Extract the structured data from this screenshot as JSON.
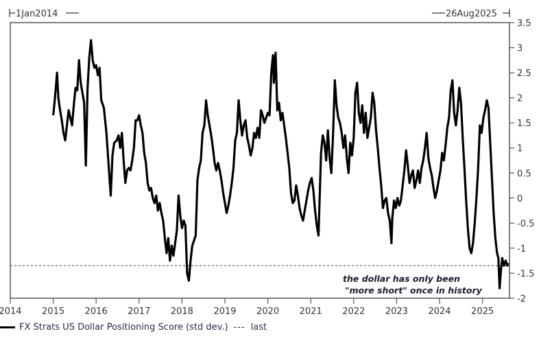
{
  "header": {
    "start_date": "1Jan2014",
    "end_date": "26Aug2025"
  },
  "legend": {
    "series_label": "FX Strats US Dollar Positioning Score (std dev.)",
    "dash_symbol": "---",
    "last_label": "last"
  },
  "annotation": {
    "line1": "the dollar has only been",
    "line2": "\"more short\"  once in history"
  },
  "chart_data": {
    "type": "line",
    "title": "",
    "xlabel": "",
    "ylabel": "",
    "x_ticks": [
      "2014",
      "2015",
      "2016",
      "2017",
      "2018",
      "2019",
      "2020",
      "2021",
      "2022",
      "2023",
      "2024",
      "2025"
    ],
    "y_ticks": [
      3.5,
      3,
      2.5,
      2,
      1.5,
      1,
      0.5,
      0,
      -0.5,
      -1,
      -1.5,
      -2
    ],
    "xlim": [
      2014.0,
      2025.65
    ],
    "ylim": [
      -2,
      3.5
    ],
    "y_axis_position": "right",
    "grid": false,
    "legend_position": "bottom-left",
    "reference_line": {
      "name": "last",
      "value": -1.35,
      "style": "dotted"
    },
    "series": [
      {
        "name": "FX Strats US Dollar Positioning Score (std dev.)",
        "color": "#000000",
        "points": [
          [
            2015.0,
            1.65
          ],
          [
            2015.03,
            1.9
          ],
          [
            2015.06,
            2.2
          ],
          [
            2015.09,
            2.5
          ],
          [
            2015.12,
            2.0
          ],
          [
            2015.16,
            1.75
          ],
          [
            2015.2,
            1.55
          ],
          [
            2015.24,
            1.3
          ],
          [
            2015.28,
            1.15
          ],
          [
            2015.32,
            1.45
          ],
          [
            2015.36,
            1.75
          ],
          [
            2015.4,
            1.6
          ],
          [
            2015.44,
            1.45
          ],
          [
            2015.48,
            1.85
          ],
          [
            2015.52,
            2.2
          ],
          [
            2015.56,
            2.15
          ],
          [
            2015.6,
            2.75
          ],
          [
            2015.64,
            2.3
          ],
          [
            2015.68,
            2.1
          ],
          [
            2015.72,
            1.9
          ],
          [
            2015.76,
            0.65
          ],
          [
            2015.8,
            2.2
          ],
          [
            2015.84,
            2.8
          ],
          [
            2015.88,
            3.15
          ],
          [
            2015.92,
            2.75
          ],
          [
            2015.96,
            2.6
          ],
          [
            2016.0,
            2.65
          ],
          [
            2016.04,
            2.45
          ],
          [
            2016.08,
            2.6
          ],
          [
            2016.12,
            1.95
          ],
          [
            2016.18,
            1.8
          ],
          [
            2016.24,
            1.3
          ],
          [
            2016.28,
            0.8
          ],
          [
            2016.32,
            0.3
          ],
          [
            2016.34,
            0.05
          ],
          [
            2016.38,
            0.85
          ],
          [
            2016.42,
            1.1
          ],
          [
            2016.48,
            1.15
          ],
          [
            2016.52,
            1.25
          ],
          [
            2016.56,
            1.0
          ],
          [
            2016.6,
            1.3
          ],
          [
            2016.64,
            0.75
          ],
          [
            2016.68,
            0.3
          ],
          [
            2016.72,
            0.55
          ],
          [
            2016.76,
            0.6
          ],
          [
            2016.8,
            0.55
          ],
          [
            2016.84,
            0.75
          ],
          [
            2016.88,
            1.0
          ],
          [
            2016.92,
            1.55
          ],
          [
            2016.96,
            1.55
          ],
          [
            2017.0,
            1.65
          ],
          [
            2017.04,
            1.45
          ],
          [
            2017.08,
            1.3
          ],
          [
            2017.12,
            0.9
          ],
          [
            2017.16,
            0.7
          ],
          [
            2017.2,
            0.3
          ],
          [
            2017.24,
            0.15
          ],
          [
            2017.28,
            0.2
          ],
          [
            2017.32,
            0.0
          ],
          [
            2017.36,
            -0.1
          ],
          [
            2017.4,
            0.05
          ],
          [
            2017.44,
            -0.25
          ],
          [
            2017.48,
            -0.1
          ],
          [
            2017.52,
            -0.3
          ],
          [
            2017.56,
            -0.45
          ],
          [
            2017.6,
            -0.8
          ],
          [
            2017.64,
            -1.1
          ],
          [
            2017.68,
            -0.8
          ],
          [
            2017.72,
            -1.25
          ],
          [
            2017.76,
            -0.95
          ],
          [
            2017.8,
            -1.15
          ],
          [
            2017.84,
            -0.9
          ],
          [
            2017.88,
            -0.65
          ],
          [
            2017.92,
            0.05
          ],
          [
            2017.96,
            -0.35
          ],
          [
            2018.0,
            -0.6
          ],
          [
            2018.04,
            -0.45
          ],
          [
            2018.08,
            -0.55
          ],
          [
            2018.12,
            -1.5
          ],
          [
            2018.16,
            -1.65
          ],
          [
            2018.2,
            -1.25
          ],
          [
            2018.24,
            -0.95
          ],
          [
            2018.28,
            -0.85
          ],
          [
            2018.32,
            -0.75
          ],
          [
            2018.36,
            0.35
          ],
          [
            2018.4,
            0.6
          ],
          [
            2018.44,
            0.75
          ],
          [
            2018.48,
            1.3
          ],
          [
            2018.52,
            1.45
          ],
          [
            2018.56,
            1.95
          ],
          [
            2018.6,
            1.65
          ],
          [
            2018.64,
            1.45
          ],
          [
            2018.68,
            1.25
          ],
          [
            2018.72,
            1.0
          ],
          [
            2018.76,
            0.7
          ],
          [
            2018.8,
            0.55
          ],
          [
            2018.84,
            0.7
          ],
          [
            2018.88,
            0.55
          ],
          [
            2018.92,
            0.35
          ],
          [
            2018.96,
            0.1
          ],
          [
            2019.0,
            -0.1
          ],
          [
            2019.04,
            -0.3
          ],
          [
            2019.08,
            -0.15
          ],
          [
            2019.12,
            0.05
          ],
          [
            2019.16,
            0.3
          ],
          [
            2019.2,
            0.6
          ],
          [
            2019.24,
            1.15
          ],
          [
            2019.28,
            1.3
          ],
          [
            2019.32,
            1.95
          ],
          [
            2019.36,
            1.55
          ],
          [
            2019.4,
            1.25
          ],
          [
            2019.44,
            1.45
          ],
          [
            2019.48,
            1.55
          ],
          [
            2019.52,
            1.2
          ],
          [
            2019.56,
            1.05
          ],
          [
            2019.6,
            0.85
          ],
          [
            2019.64,
            1.0
          ],
          [
            2019.68,
            1.3
          ],
          [
            2019.72,
            1.2
          ],
          [
            2019.76,
            1.4
          ],
          [
            2019.8,
            1.2
          ],
          [
            2019.84,
            1.75
          ],
          [
            2019.88,
            1.65
          ],
          [
            2019.92,
            1.5
          ],
          [
            2019.96,
            1.6
          ],
          [
            2020.0,
            1.7
          ],
          [
            2020.04,
            1.65
          ],
          [
            2020.08,
            2.5
          ],
          [
            2020.12,
            2.85
          ],
          [
            2020.14,
            2.3
          ],
          [
            2020.18,
            2.9
          ],
          [
            2020.22,
            1.75
          ],
          [
            2020.26,
            1.9
          ],
          [
            2020.3,
            1.55
          ],
          [
            2020.34,
            1.7
          ],
          [
            2020.38,
            1.45
          ],
          [
            2020.42,
            1.2
          ],
          [
            2020.46,
            0.9
          ],
          [
            2020.5,
            0.6
          ],
          [
            2020.54,
            0.1
          ],
          [
            2020.58,
            -0.1
          ],
          [
            2020.62,
            -0.05
          ],
          [
            2020.66,
            0.25
          ],
          [
            2020.7,
            0.05
          ],
          [
            2020.74,
            -0.2
          ],
          [
            2020.78,
            -0.35
          ],
          [
            2020.82,
            -0.45
          ],
          [
            2020.86,
            -0.25
          ],
          [
            2020.9,
            -0.05
          ],
          [
            2020.94,
            0.15
          ],
          [
            2020.98,
            0.3
          ],
          [
            2021.02,
            0.4
          ],
          [
            2021.06,
            0.15
          ],
          [
            2021.1,
            -0.25
          ],
          [
            2021.14,
            -0.55
          ],
          [
            2021.18,
            -0.75
          ],
          [
            2021.2,
            -0.2
          ],
          [
            2021.24,
            0.9
          ],
          [
            2021.28,
            1.25
          ],
          [
            2021.32,
            1.1
          ],
          [
            2021.36,
            0.75
          ],
          [
            2021.4,
            1.35
          ],
          [
            2021.44,
            0.8
          ],
          [
            2021.48,
            0.5
          ],
          [
            2021.52,
            1.3
          ],
          [
            2021.56,
            2.35
          ],
          [
            2021.6,
            1.85
          ],
          [
            2021.64,
            1.6
          ],
          [
            2021.68,
            1.5
          ],
          [
            2021.72,
            1.3
          ],
          [
            2021.76,
            1.0
          ],
          [
            2021.8,
            1.25
          ],
          [
            2021.84,
            0.8
          ],
          [
            2021.88,
            0.5
          ],
          [
            2021.92,
            1.1
          ],
          [
            2021.96,
            0.85
          ],
          [
            2022.0,
            1.2
          ],
          [
            2022.04,
            2.1
          ],
          [
            2022.08,
            2.3
          ],
          [
            2022.12,
            1.7
          ],
          [
            2022.16,
            1.5
          ],
          [
            2022.2,
            1.85
          ],
          [
            2022.24,
            1.3
          ],
          [
            2022.28,
            1.7
          ],
          [
            2022.32,
            1.2
          ],
          [
            2022.36,
            1.4
          ],
          [
            2022.4,
            1.6
          ],
          [
            2022.44,
            2.1
          ],
          [
            2022.48,
            1.9
          ],
          [
            2022.52,
            1.35
          ],
          [
            2022.56,
            1.0
          ],
          [
            2022.6,
            0.6
          ],
          [
            2022.64,
            0.25
          ],
          [
            2022.68,
            -0.2
          ],
          [
            2022.72,
            -0.05
          ],
          [
            2022.76,
            0.0
          ],
          [
            2022.8,
            -0.3
          ],
          [
            2022.84,
            -0.45
          ],
          [
            2022.88,
            -0.9
          ],
          [
            2022.9,
            -0.4
          ],
          [
            2022.94,
            -0.05
          ],
          [
            2022.98,
            -0.2
          ],
          [
            2023.02,
            0.0
          ],
          [
            2023.06,
            -0.15
          ],
          [
            2023.1,
            -0.05
          ],
          [
            2023.14,
            0.25
          ],
          [
            2023.18,
            0.55
          ],
          [
            2023.22,
            0.95
          ],
          [
            2023.26,
            0.65
          ],
          [
            2023.3,
            0.3
          ],
          [
            2023.34,
            0.45
          ],
          [
            2023.38,
            0.55
          ],
          [
            2023.42,
            0.2
          ],
          [
            2023.46,
            0.35
          ],
          [
            2023.5,
            0.55
          ],
          [
            2023.54,
            0.3
          ],
          [
            2023.58,
            0.6
          ],
          [
            2023.62,
            0.75
          ],
          [
            2023.66,
            1.0
          ],
          [
            2023.7,
            1.3
          ],
          [
            2023.74,
            0.8
          ],
          [
            2023.78,
            0.6
          ],
          [
            2023.82,
            0.45
          ],
          [
            2023.86,
            0.2
          ],
          [
            2023.9,
            0.0
          ],
          [
            2023.94,
            0.15
          ],
          [
            2023.98,
            0.35
          ],
          [
            2024.02,
            0.55
          ],
          [
            2024.06,
            0.9
          ],
          [
            2024.1,
            0.75
          ],
          [
            2024.14,
            1.05
          ],
          [
            2024.18,
            1.4
          ],
          [
            2024.22,
            1.6
          ],
          [
            2024.26,
            2.15
          ],
          [
            2024.3,
            2.35
          ],
          [
            2024.34,
            1.7
          ],
          [
            2024.38,
            1.45
          ],
          [
            2024.42,
            1.75
          ],
          [
            2024.46,
            2.2
          ],
          [
            2024.5,
            1.9
          ],
          [
            2024.54,
            1.2
          ],
          [
            2024.58,
            0.6
          ],
          [
            2024.62,
            -0.05
          ],
          [
            2024.66,
            -0.6
          ],
          [
            2024.7,
            -1.0
          ],
          [
            2024.74,
            -1.1
          ],
          [
            2024.78,
            -0.9
          ],
          [
            2024.82,
            -0.5
          ],
          [
            2024.86,
            0.0
          ],
          [
            2024.9,
            0.6
          ],
          [
            2024.94,
            1.45
          ],
          [
            2024.98,
            1.3
          ],
          [
            2025.02,
            1.6
          ],
          [
            2025.06,
            1.75
          ],
          [
            2025.1,
            1.95
          ],
          [
            2025.14,
            1.8
          ],
          [
            2025.18,
            1.1
          ],
          [
            2025.22,
            0.4
          ],
          [
            2025.26,
            -0.3
          ],
          [
            2025.3,
            -0.8
          ],
          [
            2025.34,
            -1.1
          ],
          [
            2025.37,
            -1.2
          ],
          [
            2025.4,
            -1.8
          ],
          [
            2025.43,
            -1.45
          ],
          [
            2025.46,
            -1.2
          ],
          [
            2025.5,
            -1.35
          ],
          [
            2025.54,
            -1.25
          ],
          [
            2025.58,
            -1.35
          ],
          [
            2025.6,
            -1.3
          ]
        ]
      }
    ]
  }
}
